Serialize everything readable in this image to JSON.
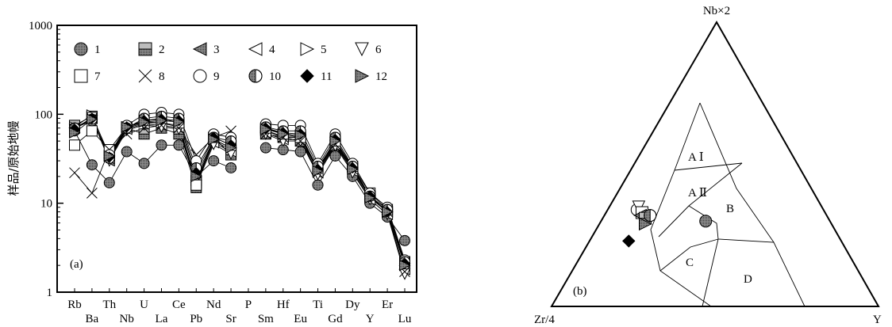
{
  "chart_data": [
    {
      "type": "line",
      "panel_label": "(a)",
      "ylabel": "样品/原始地幔",
      "yscale": "log",
      "ylim": [
        1,
        1000
      ],
      "yticks": [
        "1",
        "10",
        "100",
        "1000"
      ],
      "categories_top": [
        "Rb",
        "Th",
        "U",
        "Ce",
        "Nd",
        "P",
        "Hf",
        "Ti",
        "Dy",
        "Er"
      ],
      "categories_bottom": [
        "Ba",
        "Nb",
        "La",
        "Pb",
        "Sr",
        "Sm",
        "Eu",
        "Gd",
        "Y",
        "Lu"
      ],
      "categories": [
        "Rb",
        "Ba",
        "Th",
        "Nb",
        "U",
        "La",
        "Ce",
        "Pb",
        "Nd",
        "Sr",
        "P",
        "Sm",
        "Hf",
        "Eu",
        "Ti",
        "Gd",
        "Dy",
        "Y",
        "Er",
        "Lu"
      ],
      "legend": [
        "1",
        "2",
        "3",
        "4",
        "5",
        "6",
        "7",
        "8",
        "9",
        "10",
        "11",
        "12"
      ],
      "series": [
        {
          "name": "1",
          "marker": "circle",
          "values": [
            65,
            27,
            17,
            38,
            28,
            45,
            45,
            20,
            30,
            25,
            null,
            42,
            40,
            38,
            16,
            34,
            20,
            10,
            7,
            3.8
          ]
        },
        {
          "name": "2",
          "marker": "square-half",
          "values": [
            75,
            95,
            35,
            70,
            60,
            70,
            60,
            15,
            55,
            35,
            null,
            60,
            55,
            50,
            25,
            45,
            25,
            12,
            8,
            2.2
          ]
        },
        {
          "name": "3",
          "marker": "tri-left-fill",
          "values": [
            70,
            90,
            30,
            70,
            80,
            80,
            75,
            18,
            50,
            40,
            null,
            65,
            55,
            55,
            23,
            47,
            24,
            12,
            8,
            2.0
          ]
        },
        {
          "name": "4",
          "marker": "tri-left",
          "values": [
            70,
            90,
            32,
            68,
            78,
            75,
            70,
            17,
            48,
            38,
            null,
            62,
            52,
            52,
            22,
            45,
            23,
            11,
            7.5,
            1.8
          ]
        },
        {
          "name": "5",
          "marker": "tri-right",
          "values": [
            72,
            98,
            34,
            72,
            82,
            80,
            72,
            18,
            52,
            42,
            null,
            66,
            56,
            55,
            24,
            48,
            25,
            12,
            8,
            2.1
          ]
        },
        {
          "name": "6",
          "marker": "tri-down",
          "values": [
            68,
            92,
            30,
            66,
            76,
            72,
            68,
            16,
            46,
            36,
            null,
            60,
            50,
            50,
            21,
            44,
            22,
            11,
            7.5,
            1.6
          ]
        },
        {
          "name": "7",
          "marker": "square",
          "values": [
            45,
            65,
            40,
            72,
            85,
            90,
            80,
            16,
            55,
            45,
            null,
            70,
            60,
            55,
            25,
            50,
            26,
            13,
            8.5,
            2.2
          ]
        },
        {
          "name": "8",
          "marker": "cross",
          "values": [
            22,
            13,
            40,
            60,
            70,
            75,
            70,
            35,
            55,
            65,
            null,
            60,
            55,
            50,
            22,
            46,
            24,
            12,
            8,
            1.7
          ]
        },
        {
          "name": "9",
          "marker": "circle-open",
          "values": [
            70,
            85,
            35,
            75,
            100,
            105,
            100,
            30,
            60,
            55,
            null,
            78,
            75,
            75,
            28,
            60,
            28,
            13,
            9,
            2.3
          ]
        },
        {
          "name": "10",
          "marker": "circle-half",
          "values": [
            70,
            88,
            32,
            70,
            90,
            95,
            90,
            25,
            55,
            50,
            null,
            72,
            65,
            65,
            26,
            55,
            26,
            12,
            8.5,
            2.2
          ]
        },
        {
          "name": "11",
          "marker": "diamond-fill",
          "values": [
            68,
            90,
            33,
            72,
            85,
            88,
            85,
            22,
            55,
            45,
            null,
            70,
            62,
            60,
            24,
            52,
            25,
            12,
            8,
            2.1
          ]
        },
        {
          "name": "12",
          "marker": "tri-right-fill",
          "values": [
            62,
            88,
            34,
            72,
            82,
            85,
            82,
            20,
            52,
            42,
            null,
            68,
            60,
            58,
            23,
            50,
            24,
            11.5,
            8,
            2.0
          ]
        }
      ]
    },
    {
      "type": "scatter",
      "subtype": "ternary",
      "panel_label": "(b)",
      "vertices": [
        "Nb×2",
        "Zr/4",
        "Y"
      ],
      "field_labels": [
        "A Ⅰ",
        "A Ⅱ",
        "B",
        "C",
        "D"
      ],
      "points": [
        {
          "series": "1",
          "marker": "circle",
          "nb": 0.3,
          "zr": 0.38,
          "y": 0.32
        },
        {
          "series": "9",
          "marker": "circle-open",
          "nb": 0.34,
          "zr": 0.57,
          "y": 0.09
        },
        {
          "series": "6",
          "marker": "tri-down",
          "nb": 0.35,
          "zr": 0.56,
          "y": 0.09
        },
        {
          "series": "7",
          "marker": "square",
          "nb": 0.33,
          "zr": 0.56,
          "y": 0.11
        },
        {
          "series": "3",
          "marker": "tri-left-fill",
          "nb": 0.32,
          "zr": 0.57,
          "y": 0.11
        },
        {
          "series": "2",
          "marker": "square-half",
          "nb": 0.31,
          "zr": 0.56,
          "y": 0.13
        },
        {
          "series": "12",
          "marker": "tri-right-fill",
          "nb": 0.29,
          "zr": 0.57,
          "y": 0.14
        },
        {
          "series": "10",
          "marker": "circle-half",
          "nb": 0.32,
          "zr": 0.54,
          "y": 0.14
        },
        {
          "series": "11",
          "marker": "diamond-fill",
          "nb": 0.23,
          "zr": 0.65,
          "y": 0.12
        }
      ]
    }
  ]
}
